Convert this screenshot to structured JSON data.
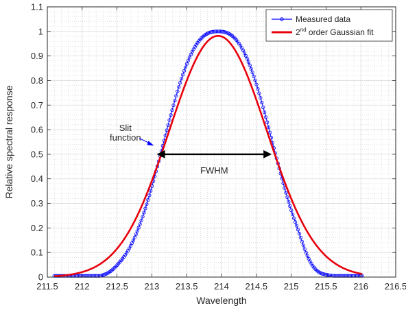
{
  "chart_data": {
    "type": "line",
    "xlabel": "Wavelength",
    "ylabel": "Relative spectral response",
    "xlim": [
      211.5,
      216.5
    ],
    "ylim": [
      0,
      1.1
    ],
    "xticks": [
      211.5,
      212,
      212.5,
      213,
      213.5,
      214,
      214.5,
      215,
      215.5,
      216,
      216.5
    ],
    "yticks": [
      0,
      0.1,
      0.2,
      0.3,
      0.4,
      0.5,
      0.6,
      0.7,
      0.8,
      0.9,
      1,
      1.1
    ],
    "grid": true,
    "minor_grid": true,
    "legend_position": "top-right",
    "series": [
      {
        "name": "Measured data",
        "color": "#0000ff",
        "marker": "circle",
        "model": {
          "kind": "measured-slit-function",
          "x_start": 211.6,
          "x_end": 216.02,
          "peak_x": 213.95,
          "peak_y": 1.0,
          "fwhm": 1.65
        }
      },
      {
        "name_main": "2",
        "name_sup": "nd",
        "name_rest": " order Gaussian fit",
        "color": "#e8000b",
        "model": {
          "kind": "gaussian-order-2",
          "x_start": 211.6,
          "x_end": 216.02,
          "center": 213.95,
          "amplitude": 0.982,
          "fwhm": 1.65
        }
      }
    ],
    "annotations": {
      "slit_function_line1": "Slit",
      "slit_function_line2": "function",
      "slit_function_color": "#0000ff",
      "fwhm_label": "FWHM",
      "fwhm_arrow": {
        "x_left": 213.07,
        "x_right": 214.72,
        "y": 0.5
      }
    }
  }
}
